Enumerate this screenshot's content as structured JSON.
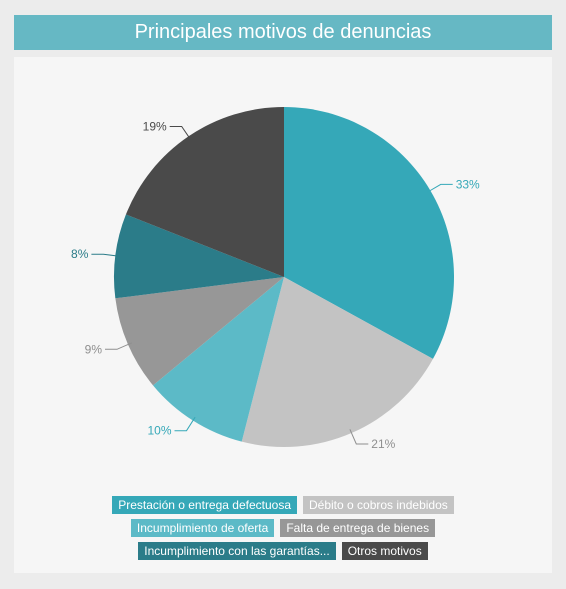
{
  "title": "Principales motivos de denuncias",
  "chart_data": {
    "type": "pie",
    "categories": [
      "Prestación o entrega defectuosa",
      "Débito o cobros indebidos",
      "Incumplimiento de oferta",
      "Falta de entrega de bienes",
      "Incumplimiento con las garantías...",
      "Otros motivos"
    ],
    "values": [
      33,
      21,
      10,
      9,
      8,
      19
    ],
    "value_labels": [
      "33%",
      "21%",
      "10%",
      "9%",
      "8%",
      "19%"
    ],
    "colors": [
      "#35a8b8",
      "#c3c3c3",
      "#5cbac7",
      "#979797",
      "#2b7c89",
      "#4a4a4a"
    ],
    "label_colors": [
      "#35a8b8",
      "#8f8f8f",
      "#35a8b8",
      "#8f8f8f",
      "#2b7c89",
      "#4a4a4a"
    ],
    "start_angle": "12 o'clock",
    "direction": "clockwise",
    "legend_placement": "bottom"
  }
}
